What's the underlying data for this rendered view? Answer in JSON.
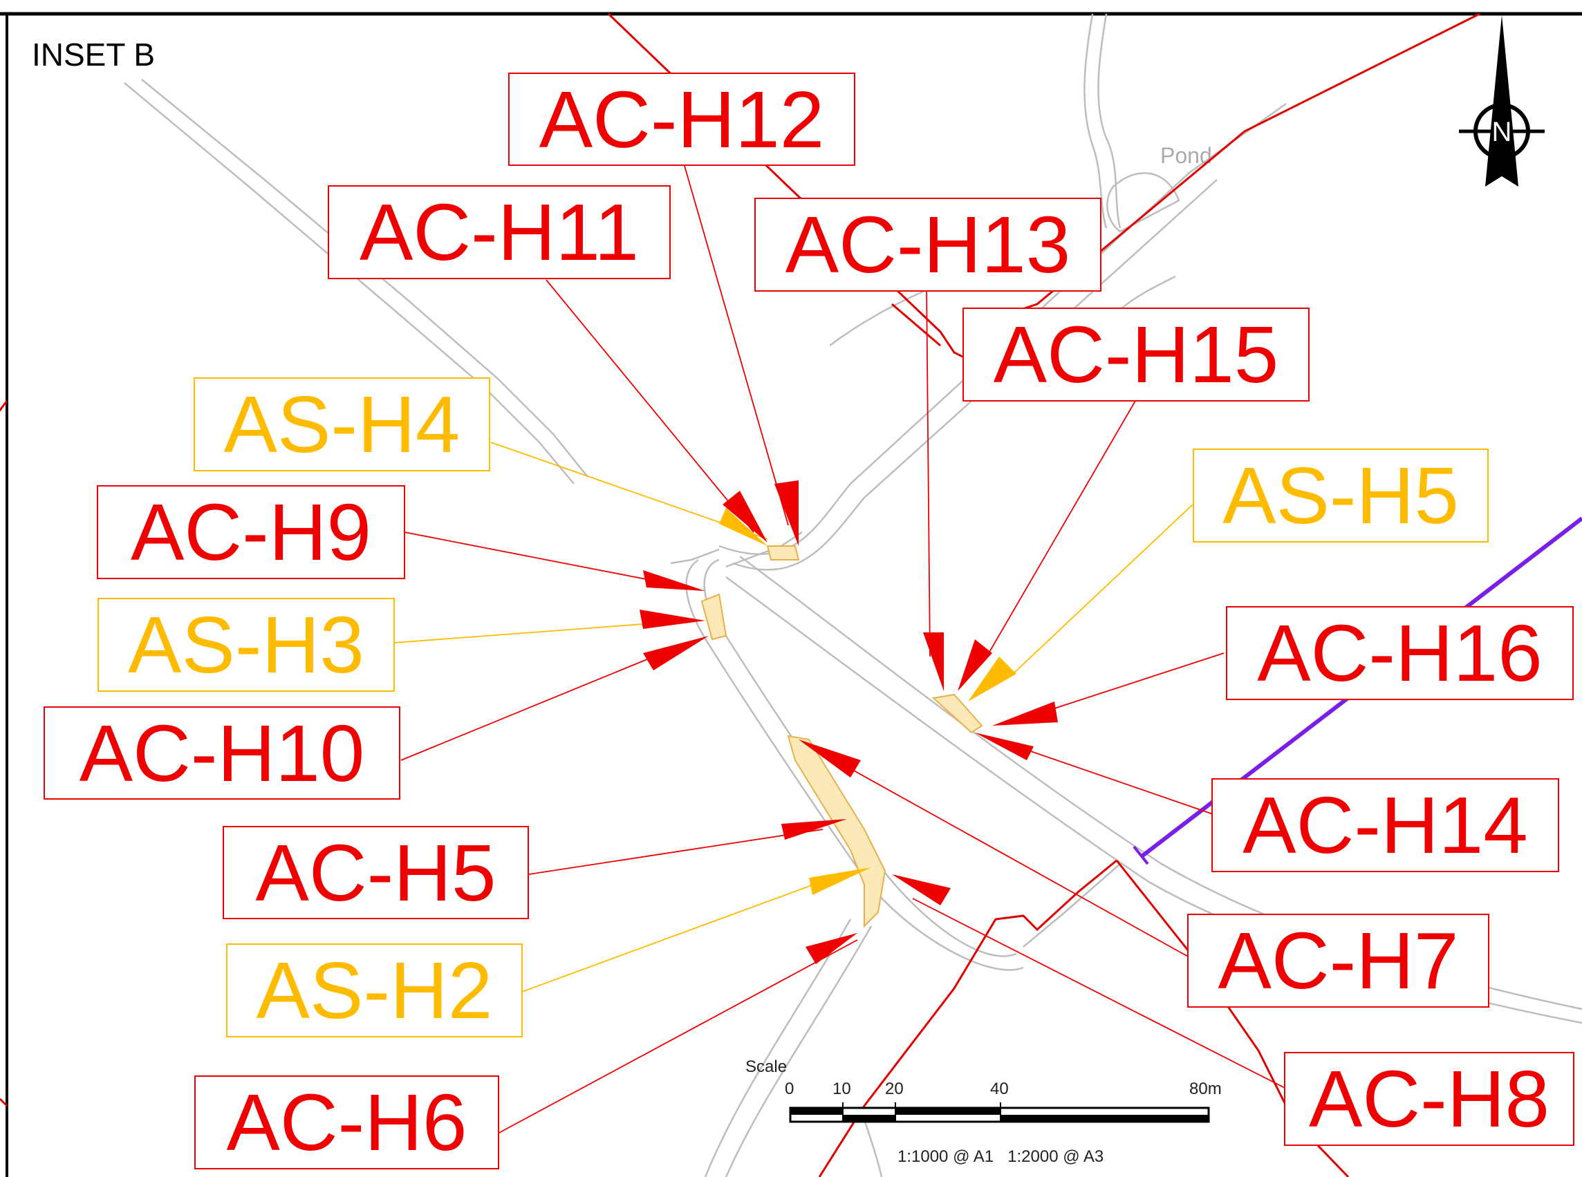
{
  "inset": {
    "title": "INSET B"
  },
  "map_features": {
    "pond_label": "Pond"
  },
  "north_arrow": {
    "letter": "N",
    "icon": "north-arrow-icon"
  },
  "scale_bar": {
    "caption": "Scale",
    "ticks": [
      "0",
      "10",
      "20",
      "40",
      "80m"
    ],
    "ratios": "1:1000 @ A1   1:2000 @ A3"
  },
  "colors": {
    "red": "#ee0000",
    "amber": "#ffbb00",
    "road": "#bdbdbd",
    "boundary": "#dd0000",
    "purple": "#7a1fe6",
    "highlight": "#fce9b8"
  },
  "labels": {
    "ac_h12": "AC-H12",
    "ac_h11": "AC-H11",
    "ac_h13": "AC-H13",
    "ac_h15": "AC-H15",
    "as_h4": "AS-H4",
    "as_h5": "AS-H5",
    "ac_h9": "AC-H9",
    "as_h3": "AS-H3",
    "ac_h16": "AC-H16",
    "ac_h10": "AC-H10",
    "ac_h14": "AC-H14",
    "ac_h5": "AC-H5",
    "ac_h7": "AC-H7",
    "as_h2": "AS-H2",
    "ac_h6": "AC-H6",
    "ac_h8": "AC-H8"
  }
}
